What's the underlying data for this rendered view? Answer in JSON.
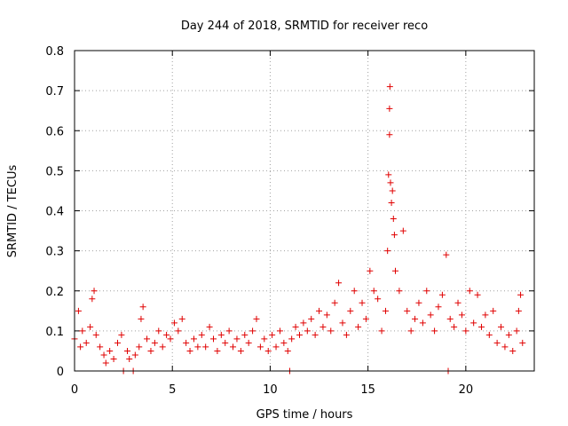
{
  "chart_data": {
    "type": "scatter",
    "title": "Day 244 of 2018, SRMTID for receiver reco",
    "xlabel": "GPS time / hours",
    "ylabel": "SRMTID / TECUs",
    "xlim": [
      0,
      23.5
    ],
    "ylim": [
      0,
      0.8
    ],
    "xticks": [
      0,
      5,
      10,
      15,
      20
    ],
    "xtick_labels": [
      "0",
      "5",
      "10",
      "15",
      "20"
    ],
    "yticks": [
      0,
      0.1,
      0.2,
      0.3,
      0.4,
      0.5,
      0.6,
      0.7,
      0.8
    ],
    "ytick_labels": [
      "0",
      "0.1",
      "0.2",
      "0.3",
      "0.4",
      "0.5",
      "0.6",
      "0.7",
      "0.8"
    ],
    "grid": true,
    "marker": "+",
    "color": "#e00000",
    "series": [
      {
        "name": "SRMTID",
        "points": [
          [
            0.0,
            0.08
          ],
          [
            0.2,
            0.15
          ],
          [
            0.3,
            0.06
          ],
          [
            0.4,
            0.1
          ],
          [
            0.6,
            0.07
          ],
          [
            0.8,
            0.11
          ],
          [
            0.9,
            0.18
          ],
          [
            1.0,
            0.2
          ],
          [
            1.1,
            0.09
          ],
          [
            1.3,
            0.06
          ],
          [
            1.5,
            0.04
          ],
          [
            1.6,
            0.02
          ],
          [
            1.8,
            0.05
          ],
          [
            2.0,
            0.03
          ],
          [
            2.2,
            0.07
          ],
          [
            2.4,
            0.09
          ],
          [
            2.5,
            0.0
          ],
          [
            2.7,
            0.05
          ],
          [
            2.8,
            0.03
          ],
          [
            3.0,
            0.0
          ],
          [
            3.1,
            0.04
          ],
          [
            3.3,
            0.06
          ],
          [
            3.4,
            0.13
          ],
          [
            3.5,
            0.16
          ],
          [
            3.7,
            0.08
          ],
          [
            3.9,
            0.05
          ],
          [
            4.1,
            0.07
          ],
          [
            4.3,
            0.1
          ],
          [
            4.5,
            0.06
          ],
          [
            4.7,
            0.09
          ],
          [
            4.9,
            0.08
          ],
          [
            5.1,
            0.12
          ],
          [
            5.3,
            0.1
          ],
          [
            5.5,
            0.13
          ],
          [
            5.7,
            0.07
          ],
          [
            5.9,
            0.05
          ],
          [
            6.1,
            0.08
          ],
          [
            6.3,
            0.06
          ],
          [
            6.5,
            0.09
          ],
          [
            6.7,
            0.06
          ],
          [
            6.9,
            0.11
          ],
          [
            7.1,
            0.08
          ],
          [
            7.3,
            0.05
          ],
          [
            7.5,
            0.09
          ],
          [
            7.7,
            0.07
          ],
          [
            7.9,
            0.1
          ],
          [
            8.1,
            0.06
          ],
          [
            8.3,
            0.08
          ],
          [
            8.5,
            0.05
          ],
          [
            8.7,
            0.09
          ],
          [
            8.9,
            0.07
          ],
          [
            9.1,
            0.1
          ],
          [
            9.3,
            0.13
          ],
          [
            9.5,
            0.06
          ],
          [
            9.7,
            0.08
          ],
          [
            9.9,
            0.05
          ],
          [
            10.1,
            0.09
          ],
          [
            10.3,
            0.06
          ],
          [
            10.5,
            0.1
          ],
          [
            10.7,
            0.07
          ],
          [
            10.9,
            0.05
          ],
          [
            11.0,
            0.0
          ],
          [
            11.1,
            0.08
          ],
          [
            11.3,
            0.11
          ],
          [
            11.5,
            0.09
          ],
          [
            11.7,
            0.12
          ],
          [
            11.9,
            0.1
          ],
          [
            12.1,
            0.13
          ],
          [
            12.3,
            0.09
          ],
          [
            12.5,
            0.15
          ],
          [
            12.7,
            0.11
          ],
          [
            12.9,
            0.14
          ],
          [
            13.1,
            0.1
          ],
          [
            13.3,
            0.17
          ],
          [
            13.5,
            0.22
          ],
          [
            13.7,
            0.12
          ],
          [
            13.9,
            0.09
          ],
          [
            14.1,
            0.15
          ],
          [
            14.3,
            0.2
          ],
          [
            14.5,
            0.11
          ],
          [
            14.7,
            0.17
          ],
          [
            14.9,
            0.13
          ],
          [
            15.1,
            0.25
          ],
          [
            15.3,
            0.2
          ],
          [
            15.5,
            0.18
          ],
          [
            15.7,
            0.1
          ],
          [
            15.9,
            0.15
          ],
          [
            16.0,
            0.3
          ],
          [
            16.05,
            0.49
          ],
          [
            16.1,
            0.59
          ],
          [
            16.1,
            0.655
          ],
          [
            16.12,
            0.71
          ],
          [
            16.15,
            0.47
          ],
          [
            16.2,
            0.42
          ],
          [
            16.25,
            0.45
          ],
          [
            16.3,
            0.38
          ],
          [
            16.35,
            0.34
          ],
          [
            16.4,
            0.25
          ],
          [
            16.6,
            0.2
          ],
          [
            16.8,
            0.35
          ],
          [
            17.0,
            0.15
          ],
          [
            17.2,
            0.1
          ],
          [
            17.4,
            0.13
          ],
          [
            17.6,
            0.17
          ],
          [
            17.8,
            0.12
          ],
          [
            18.0,
            0.2
          ],
          [
            18.2,
            0.14
          ],
          [
            18.4,
            0.1
          ],
          [
            18.6,
            0.16
          ],
          [
            18.8,
            0.19
          ],
          [
            19.0,
            0.29
          ],
          [
            19.1,
            0.0
          ],
          [
            19.2,
            0.13
          ],
          [
            19.4,
            0.11
          ],
          [
            19.6,
            0.17
          ],
          [
            19.8,
            0.14
          ],
          [
            20.0,
            0.1
          ],
          [
            20.2,
            0.2
          ],
          [
            20.4,
            0.12
          ],
          [
            20.6,
            0.19
          ],
          [
            20.8,
            0.11
          ],
          [
            21.0,
            0.14
          ],
          [
            21.2,
            0.09
          ],
          [
            21.4,
            0.15
          ],
          [
            21.6,
            0.07
          ],
          [
            21.8,
            0.11
          ],
          [
            22.0,
            0.06
          ],
          [
            22.2,
            0.09
          ],
          [
            22.4,
            0.05
          ],
          [
            22.6,
            0.1
          ],
          [
            22.7,
            0.15
          ],
          [
            22.8,
            0.19
          ],
          [
            22.9,
            0.07
          ]
        ]
      }
    ]
  }
}
